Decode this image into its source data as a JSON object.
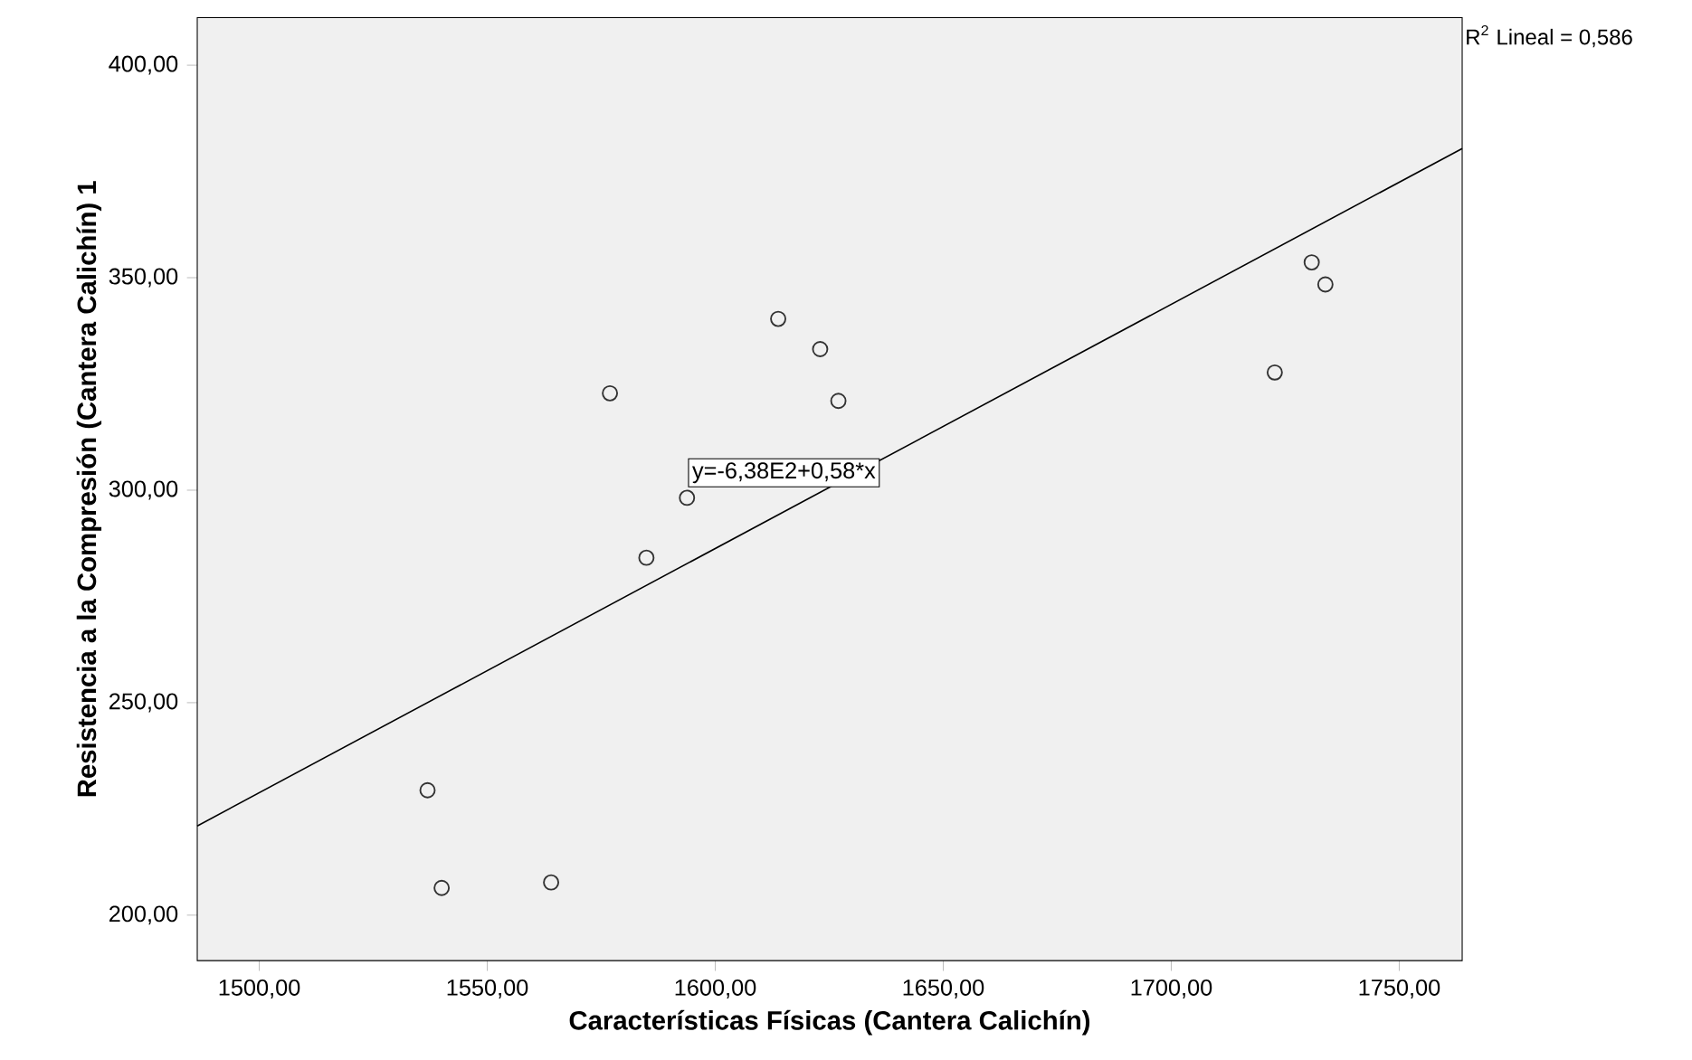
{
  "chart_data": {
    "type": "scatter",
    "xlabel": "Características Físicas (Cantera Calichín)",
    "ylabel": "Resistencia a la Compresión (Cantera Calichín) 1",
    "xlim": [
      1486.4,
      1763.8
    ],
    "ylim": [
      189.3,
      411.2
    ],
    "xticks": [
      {
        "value": 1500,
        "label": "1500,00"
      },
      {
        "value": 1550,
        "label": "1550,00"
      },
      {
        "value": 1600,
        "label": "1600,00"
      },
      {
        "value": 1650,
        "label": "1650,00"
      },
      {
        "value": 1700,
        "label": "1700,00"
      },
      {
        "value": 1750,
        "label": "1750,00"
      }
    ],
    "yticks": [
      {
        "value": 200,
        "label": "200,00"
      },
      {
        "value": 250,
        "label": "250,00"
      },
      {
        "value": 300,
        "label": "300,00"
      },
      {
        "value": 350,
        "label": "350,00"
      },
      {
        "value": 400,
        "label": "400,00"
      }
    ],
    "grid": false,
    "series": [
      {
        "marker": "circle",
        "color": "#333333",
        "x": [
          1576.9,
          1613.8,
          1623,
          1627,
          1593.8,
          1584.9,
          1536.9,
          1540,
          1564,
          1730.8,
          1733.8,
          1722.7
        ],
        "values": [
          322.8,
          340.3,
          333.2,
          321,
          298.2,
          284.1,
          229.4,
          206.4,
          207.7,
          353.6,
          348.4,
          327.7
        ]
      },
      {
        "type": "line",
        "color": "#000000",
        "x": [
          1486.4,
          1763.8
        ],
        "values": [
          221,
          380.4
        ]
      }
    ],
    "annotations": [
      "y=-6,38E2+0,58*x",
      "R$^{2}$ Lineal = 0,586"
    ]
  }
}
